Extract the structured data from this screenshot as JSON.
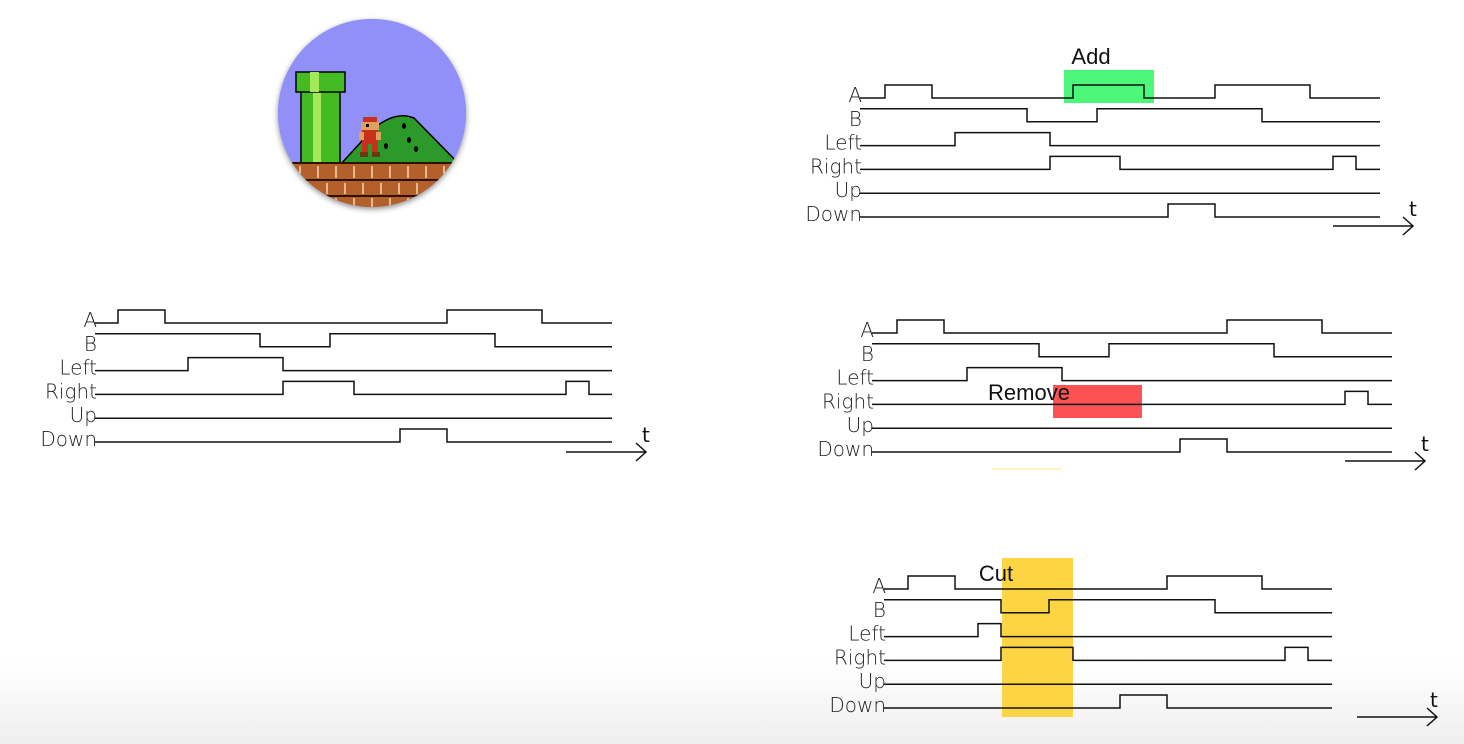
{
  "signals": [
    "A",
    "B",
    "Left",
    "Right",
    "Up",
    "Down"
  ],
  "time_label": "t",
  "colors": {
    "add": "#4cf77a",
    "remove": "#fb5353",
    "cut": "#fdd444",
    "sky": "#9090f8",
    "pipe": "#44bb22",
    "hill": "#2b9a2b",
    "ground": "#b4602b"
  },
  "icon": "game-scene-icon",
  "diagrams": [
    {
      "id": "original",
      "annotation": "",
      "waves": [
        [
          0,
          1,
          0,
          0,
          0,
          0,
          0,
          1,
          0
        ],
        [
          1,
          1,
          0,
          1,
          1,
          1,
          0,
          0,
          0
        ],
        [
          0,
          0,
          1,
          0,
          0,
          0,
          0,
          0,
          0
        ],
        [
          0,
          0,
          0,
          1,
          0,
          0,
          0,
          0,
          1
        ],
        [
          0,
          0,
          0,
          0,
          0,
          0,
          0,
          0,
          0
        ],
        [
          0,
          0,
          0,
          0,
          0,
          0,
          1,
          0,
          0
        ]
      ]
    },
    {
      "id": "add",
      "annotation": "Add",
      "waves": [
        [
          0,
          1,
          0,
          0,
          0,
          1,
          0,
          1,
          0
        ],
        [
          1,
          1,
          0,
          1,
          1,
          1,
          0,
          0,
          0
        ],
        [
          0,
          0,
          1,
          0,
          0,
          0,
          0,
          0,
          0
        ],
        [
          0,
          0,
          0,
          1,
          0,
          0,
          0,
          0,
          1
        ],
        [
          0,
          0,
          0,
          0,
          0,
          0,
          0,
          0,
          0
        ],
        [
          0,
          0,
          0,
          0,
          0,
          0,
          1,
          0,
          0
        ]
      ]
    },
    {
      "id": "remove",
      "annotation": "Remove",
      "waves": [
        [
          0,
          1,
          0,
          0,
          0,
          0,
          0,
          1,
          0
        ],
        [
          1,
          1,
          0,
          1,
          1,
          1,
          0,
          0,
          0
        ],
        [
          0,
          0,
          1,
          0,
          0,
          0,
          0,
          0,
          0
        ],
        [
          0,
          0,
          0,
          0,
          0,
          0,
          0,
          0,
          1
        ],
        [
          0,
          0,
          0,
          0,
          0,
          0,
          0,
          0,
          0
        ],
        [
          0,
          0,
          0,
          0,
          0,
          0,
          1,
          0,
          0
        ]
      ]
    },
    {
      "id": "cut",
      "annotation": "Cut",
      "waves": [
        [
          0,
          1,
          0,
          0,
          0,
          1,
          1,
          0,
          0
        ],
        [
          1,
          0,
          1,
          1,
          1,
          1,
          0,
          0,
          0
        ],
        [
          0,
          1,
          0,
          0,
          0,
          0,
          0,
          0,
          0
        ],
        [
          0,
          0,
          1,
          0,
          0,
          0,
          0,
          0,
          1
        ],
        [
          0,
          0,
          0,
          0,
          0,
          0,
          0,
          0,
          0
        ],
        [
          0,
          0,
          0,
          0,
          1,
          0,
          0,
          0,
          0
        ]
      ]
    }
  ]
}
